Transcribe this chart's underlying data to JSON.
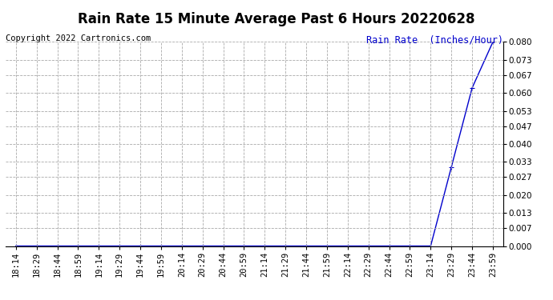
{
  "title": "Rain Rate 15 Minute Average Past 6 Hours 20220628",
  "copyright": "Copyright 2022 Cartronics.com",
  "ylabel_text": "Rain Rate  (Inches/Hour)",
  "ylabel_color": "#0000cc",
  "background_color": "#ffffff",
  "plot_bg_color": "#ffffff",
  "grid_color": "#aaaaaa",
  "line_color": "#0000cc",
  "x_labels": [
    "18:14",
    "18:29",
    "18:44",
    "18:59",
    "19:14",
    "19:29",
    "19:44",
    "19:59",
    "20:14",
    "20:29",
    "20:44",
    "20:59",
    "21:14",
    "21:29",
    "21:44",
    "21:59",
    "22:14",
    "22:29",
    "22:44",
    "22:59",
    "23:14",
    "23:29",
    "23:44",
    "23:59"
  ],
  "y_values": [
    0.0,
    0.0,
    0.0,
    0.0,
    0.0,
    0.0,
    0.0,
    0.0,
    0.0,
    0.0,
    0.0,
    0.0,
    0.0,
    0.0,
    0.0,
    0.0,
    0.0,
    0.0,
    0.0,
    0.0,
    0.0,
    0.031,
    0.062,
    0.08
  ],
  "ylim": [
    0.0,
    0.08
  ],
  "yticks": [
    0.0,
    0.007,
    0.013,
    0.02,
    0.027,
    0.033,
    0.04,
    0.047,
    0.053,
    0.06,
    0.067,
    0.073,
    0.08
  ],
  "marker": "+",
  "marker_size": 4,
  "title_fontsize": 12,
  "tick_fontsize": 7.5,
  "label_fontsize": 8.5,
  "copyright_fontsize": 7.5
}
